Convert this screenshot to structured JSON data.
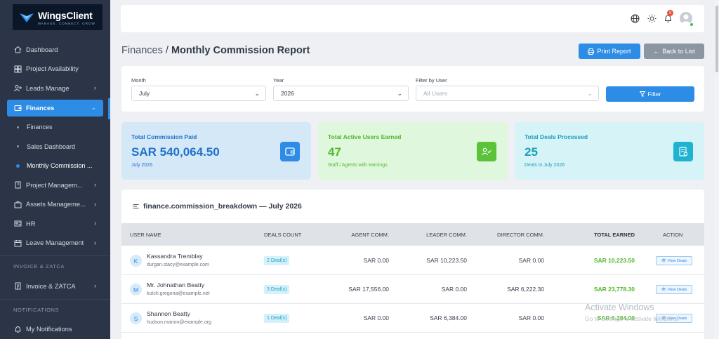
{
  "brand": {
    "name_part1": "Wings",
    "name_part2": "Client",
    "tagline": "MANAGE. CONNECT. GROW"
  },
  "sidebar": {
    "items": [
      {
        "label": "Dashboard",
        "icon": "home-icon"
      },
      {
        "label": "Project Availability",
        "icon": "grid-icon"
      },
      {
        "label": "Leads Manage",
        "icon": "user-plus-icon"
      },
      {
        "label": "Finances",
        "icon": "wallet-icon"
      },
      {
        "label": "Project Managem...",
        "icon": "building-icon"
      },
      {
        "label": "Assets Manageme...",
        "icon": "briefcase-icon"
      },
      {
        "label": "HR",
        "icon": "id-card-icon"
      },
      {
        "label": "Leave Management",
        "icon": "calendar-icon"
      },
      {
        "label": "Invoice & ZATCA",
        "icon": "invoice-icon"
      },
      {
        "label": "My Notifications",
        "icon": "bell-icon"
      }
    ],
    "sub_items": [
      "Finances",
      "Sales Dashboard",
      "Monthly Commission ..."
    ],
    "sections": [
      "INVOICE & ZATCA",
      "NOTIFICATIONS"
    ]
  },
  "topbar": {
    "notification_count": "9"
  },
  "header": {
    "crumb": "Finances",
    "separator": " / ",
    "title": "Monthly Commission Report",
    "print_label": "Print Report",
    "back_label": "Back to List"
  },
  "filters": {
    "month_label": "Month",
    "month_value": "July",
    "year_label": "Year",
    "year_value": "2026",
    "user_label": "Filter by User",
    "user_placeholder": "All Users",
    "filter_button": "Filter"
  },
  "stats": [
    {
      "title": "Total Commission Paid",
      "value": "SAR 540,064.50",
      "sub": "July 2026",
      "color": "#2d8ce6"
    },
    {
      "title": "Total Active Users Earned",
      "value": "47",
      "sub": "Staff / Agents with earnings",
      "color": "#5bc33a"
    },
    {
      "title": "Total Deals Processed",
      "value": "25",
      "sub": "Deals in July 2026",
      "color": "#1fb3d1"
    }
  ],
  "table": {
    "title": "finance.commission_breakdown — July 2026",
    "headers": [
      "USER NAME",
      "DEALS COUNT",
      "AGENT COMM.",
      "LEADER COMM.",
      "DIRECTOR COMM.",
      "TOTAL EARNED",
      "ACTION"
    ],
    "rows": [
      {
        "initial": "K",
        "name": "Kassandra Tremblay",
        "email": "durgan.stacy@example.com",
        "deals": "2 Deal(s)",
        "agent": "SAR 0.00",
        "leader": "SAR 10,223.50",
        "director": "SAR 0.00",
        "total": "SAR 10,223.50",
        "action": "View Deals"
      },
      {
        "initial": "M",
        "name": "Mr. Johnathan Beatty",
        "email": "kutch.gregoria@example.net",
        "deals": "3 Deal(s)",
        "agent": "SAR 17,556.00",
        "leader": "SAR 0.00",
        "director": "SAR 6,222.30",
        "total": "SAR 23,778.30",
        "action": "View Deals"
      },
      {
        "initial": "S",
        "name": "Shannon Beatty",
        "email": "hudson.marion@example.org",
        "deals": "1 Deal(s)",
        "agent": "SAR 0.00",
        "leader": "SAR 6,384.00",
        "director": "SAR 0.00",
        "total": "SAR 6,384.00",
        "action": "View Deals"
      }
    ]
  },
  "watermark": {
    "title": "Activate Windows",
    "sub": "Go to Settings to activate Windows."
  }
}
